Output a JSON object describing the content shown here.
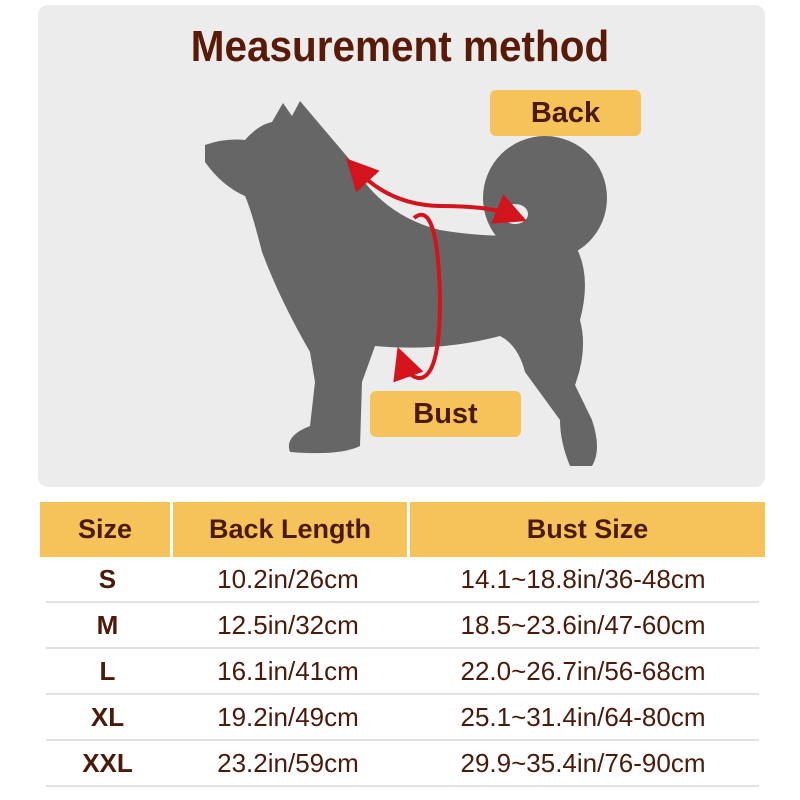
{
  "title": "Measurement method",
  "labels": {
    "back": "Back",
    "bust": "Bust"
  },
  "colors": {
    "panel": "#ececec",
    "accent": "#f6c35a",
    "text": "#4a1a0a",
    "arrow": "#d4141c",
    "dog": "#666666"
  },
  "table": {
    "headers": [
      "Size",
      "Back Length",
      "Bust Size"
    ],
    "rows": [
      {
        "size": "S",
        "back": "10.2in/26cm",
        "bust": "14.1~18.8in/36-48cm"
      },
      {
        "size": "M",
        "back": "12.5in/32cm",
        "bust": "18.5~23.6in/47-60cm"
      },
      {
        "size": "L",
        "back": "16.1in/41cm",
        "bust": "22.0~26.7in/56-68cm"
      },
      {
        "size": "XL",
        "back": "19.2in/49cm",
        "bust": "25.1~31.4in/64-80cm"
      },
      {
        "size": "XXL",
        "back": "23.2in/59cm",
        "bust": "29.9~35.4in/76-90cm"
      }
    ]
  }
}
